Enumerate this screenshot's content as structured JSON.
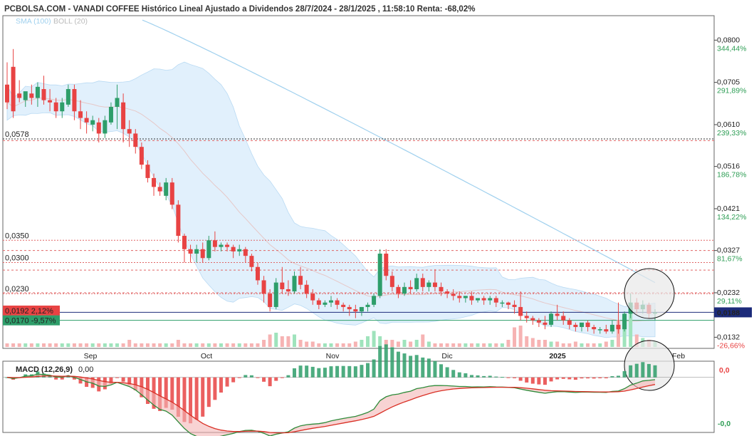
{
  "header": {
    "title": "PCBOLSA.COM - VANADI COFFEE Histórico Lineal Ajustado a Dividendos 28/7/2024 - 28/1/2025 , 11:58:10 Renta: -68,02%",
    "sma_label": "SMA (100)",
    "boll_label": "BOLL (20)"
  },
  "colors": {
    "up": "#2e9e6a",
    "down": "#e84343",
    "sma": "#9fd0ee",
    "boll_fill": "#dcedfb",
    "boll_mid": "#e6c8c8",
    "macd_line": "#2e8b3a",
    "signal_line": "#d93025",
    "vol_up": "#9fe3bc",
    "vol_down": "#f6b3b3"
  },
  "chart_data": {
    "type": "candlestick",
    "y_axis": {
      "ticks": [
        "0,0800",
        "0,0705",
        "0,0610",
        "0,0516",
        "0,0421",
        "0,0327",
        "0,0232",
        "0,0132"
      ],
      "tick_values": [
        0.08,
        0.0705,
        0.061,
        0.0516,
        0.0421,
        0.0327,
        0.0232,
        0.0132
      ],
      "pct_labels": [
        "344,44%",
        "291,89%",
        "239,33%",
        "186,78%",
        "134,22%",
        "81,67%",
        "29,11%",
        "-26,66%"
      ],
      "range": [
        0.0107,
        0.0855
      ]
    },
    "current_price_label": "0,0188",
    "left_levels": [
      {
        "value": 0.0578,
        "label": "0,0578"
      },
      {
        "value": 0.035,
        "label": "0,0350"
      },
      {
        "value": 0.03,
        "label": "0,0300"
      },
      {
        "value": 0.023,
        "label": "0,0230"
      }
    ],
    "right_levels": [
      0.0574,
      0.0327,
      0.0283,
      0.0232
    ],
    "badges": [
      {
        "price": "0,0192",
        "pct": "2,12%",
        "value": 0.0192
      },
      {
        "price": "0,0170",
        "pct": "-9,57%",
        "value": 0.017
      }
    ],
    "x_labels": [
      "Sep",
      "Oct",
      "Nov",
      "Dic",
      "2025",
      "Feb"
    ],
    "candles": [
      [
        0.07,
        0.075,
        0.066,
        0.0645
      ],
      [
        0.074,
        0.078,
        0.064,
        0.0625
      ],
      [
        0.068,
        0.071,
        0.067,
        0.066
      ],
      [
        0.0665,
        0.068,
        0.0685,
        0.065
      ],
      [
        0.068,
        0.07,
        0.067,
        0.0655
      ],
      [
        0.067,
        0.0705,
        0.0695,
        0.065
      ],
      [
        0.069,
        0.072,
        0.0665,
        0.0655
      ],
      [
        0.0665,
        0.069,
        0.066,
        0.064
      ],
      [
        0.066,
        0.067,
        0.064,
        0.0625
      ],
      [
        0.064,
        0.067,
        0.066,
        0.0625
      ],
      [
        0.0655,
        0.07,
        0.069,
        0.065
      ],
      [
        0.069,
        0.07,
        0.064,
        0.062
      ],
      [
        0.064,
        0.0665,
        0.0625,
        0.06
      ],
      [
        0.0625,
        0.064,
        0.0615,
        0.059
      ],
      [
        0.061,
        0.063,
        0.062,
        0.0595
      ],
      [
        0.0615,
        0.0625,
        0.059,
        0.057
      ],
      [
        0.059,
        0.063,
        0.062,
        0.058
      ],
      [
        0.0615,
        0.066,
        0.065,
        0.061
      ],
      [
        0.065,
        0.07,
        0.067,
        0.06
      ],
      [
        0.066,
        0.068,
        0.06,
        0.057
      ],
      [
        0.06,
        0.062,
        0.059,
        0.056
      ],
      [
        0.059,
        0.06,
        0.056,
        0.0545
      ],
      [
        0.056,
        0.057,
        0.052,
        0.051
      ],
      [
        0.052,
        0.053,
        0.049,
        0.048
      ],
      [
        0.049,
        0.05,
        0.047,
        0.045
      ],
      [
        0.047,
        0.048,
        0.046,
        0.045
      ],
      [
        0.045,
        0.049,
        0.048,
        0.044
      ],
      [
        0.048,
        0.049,
        0.043,
        0.042
      ],
      [
        0.043,
        0.044,
        0.036,
        0.0345
      ],
      [
        0.036,
        0.0365,
        0.033,
        0.03
      ],
      [
        0.033,
        0.034,
        0.032,
        0.03
      ],
      [
        0.032,
        0.034,
        0.033,
        0.03
      ],
      [
        0.033,
        0.0345,
        0.031,
        0.03
      ],
      [
        0.031,
        0.036,
        0.035,
        0.0305
      ],
      [
        0.035,
        0.037,
        0.0335,
        0.0325
      ],
      [
        0.0335,
        0.0345,
        0.034,
        0.0325
      ],
      [
        0.034,
        0.0345,
        0.0335,
        0.0325
      ],
      [
        0.0335,
        0.034,
        0.0325,
        0.031
      ],
      [
        0.0325,
        0.034,
        0.033,
        0.0315
      ],
      [
        0.033,
        0.0335,
        0.0315,
        0.03
      ],
      [
        0.0315,
        0.032,
        0.029,
        0.028
      ],
      [
        0.029,
        0.03,
        0.026,
        0.025
      ],
      [
        0.026,
        0.027,
        0.023,
        0.021
      ],
      [
        0.023,
        0.024,
        0.02,
        0.019
      ],
      [
        0.02,
        0.0265,
        0.0255,
        0.0195
      ],
      [
        0.0255,
        0.029,
        0.024,
        0.023
      ],
      [
        0.024,
        0.026,
        0.0235,
        0.0225
      ],
      [
        0.0235,
        0.028,
        0.027,
        0.023
      ],
      [
        0.027,
        0.029,
        0.025,
        0.024
      ],
      [
        0.025,
        0.026,
        0.023,
        0.022
      ],
      [
        0.023,
        0.024,
        0.0215,
        0.0205
      ],
      [
        0.0215,
        0.022,
        0.0205,
        0.0195
      ],
      [
        0.0205,
        0.0215,
        0.021,
        0.02
      ],
      [
        0.021,
        0.0225,
        0.0215,
        0.02
      ],
      [
        0.0215,
        0.022,
        0.0205,
        0.0195
      ],
      [
        0.0205,
        0.021,
        0.02,
        0.019
      ],
      [
        0.02,
        0.0205,
        0.0195,
        0.018
      ],
      [
        0.0195,
        0.0205,
        0.019,
        0.0175
      ],
      [
        0.019,
        0.02,
        0.02,
        0.018
      ],
      [
        0.02,
        0.021,
        0.0205,
        0.019
      ],
      [
        0.0205,
        0.023,
        0.0225,
        0.02
      ],
      [
        0.0225,
        0.033,
        0.032,
        0.022
      ],
      [
        0.032,
        0.033,
        0.027,
        0.026
      ],
      [
        0.027,
        0.028,
        0.0245,
        0.0235
      ],
      [
        0.0245,
        0.025,
        0.023,
        0.022
      ],
      [
        0.023,
        0.0255,
        0.0245,
        0.0225
      ],
      [
        0.0245,
        0.026,
        0.024,
        0.023
      ],
      [
        0.024,
        0.0275,
        0.0265,
        0.0235
      ],
      [
        0.0265,
        0.0275,
        0.0245,
        0.0235
      ],
      [
        0.0245,
        0.026,
        0.0255,
        0.0235
      ],
      [
        0.0255,
        0.0285,
        0.0245,
        0.0235
      ],
      [
        0.0245,
        0.0255,
        0.0235,
        0.0225
      ],
      [
        0.0235,
        0.024,
        0.023,
        0.022
      ],
      [
        0.023,
        0.024,
        0.0225,
        0.0215
      ],
      [
        0.0225,
        0.0235,
        0.022,
        0.021
      ],
      [
        0.022,
        0.0225,
        0.0225,
        0.021
      ],
      [
        0.0225,
        0.0235,
        0.0215,
        0.0205
      ],
      [
        0.0215,
        0.022,
        0.022,
        0.021
      ],
      [
        0.022,
        0.0225,
        0.0215,
        0.0205
      ],
      [
        0.0215,
        0.0225,
        0.022,
        0.0205
      ],
      [
        0.022,
        0.0225,
        0.021,
        0.02
      ],
      [
        0.021,
        0.0215,
        0.021,
        0.02
      ],
      [
        0.021,
        0.0212,
        0.0205,
        0.0195
      ],
      [
        0.0205,
        0.0215,
        0.02,
        0.0185
      ],
      [
        0.02,
        0.0235,
        0.018,
        0.017
      ],
      [
        0.018,
        0.019,
        0.0175,
        0.0165
      ],
      [
        0.0175,
        0.018,
        0.017,
        0.016
      ],
      [
        0.017,
        0.0175,
        0.0165,
        0.0155
      ],
      [
        0.0165,
        0.018,
        0.016,
        0.015
      ],
      [
        0.016,
        0.019,
        0.0185,
        0.0155
      ],
      [
        0.0185,
        0.0205,
        0.018,
        0.017
      ],
      [
        0.018,
        0.019,
        0.017,
        0.016
      ],
      [
        0.017,
        0.0175,
        0.016,
        0.015
      ],
      [
        0.016,
        0.0165,
        0.0155,
        0.0145
      ],
      [
        0.0155,
        0.016,
        0.0165,
        0.0145
      ],
      [
        0.0165,
        0.017,
        0.0155,
        0.0145
      ],
      [
        0.0155,
        0.016,
        0.015,
        0.014
      ],
      [
        0.015,
        0.0155,
        0.015,
        0.014
      ],
      [
        0.015,
        0.016,
        0.0145,
        0.014
      ],
      [
        0.0145,
        0.017,
        0.016,
        0.014
      ],
      [
        0.016,
        0.021,
        0.015,
        0.014
      ],
      [
        0.015,
        0.019,
        0.0185,
        0.0145
      ],
      [
        0.0185,
        0.023,
        0.021,
        0.0175
      ],
      [
        0.021,
        0.022,
        0.0195,
        0.0185
      ],
      [
        0.0195,
        0.0215,
        0.0205,
        0.0185
      ],
      [
        0.0205,
        0.021,
        0.0185,
        0.0175
      ],
      [
        0.0185,
        0.0195,
        0.0188,
        0.017
      ]
    ],
    "volumes": [
      0.1,
      0.1,
      0.1,
      0.1,
      0.1,
      0.1,
      0.1,
      0.1,
      0.1,
      0.1,
      0.1,
      0.1,
      0.1,
      0.1,
      0.1,
      0.1,
      0.1,
      0.1,
      0.1,
      0.1,
      0.2,
      0.1,
      0.1,
      0.1,
      0.1,
      0.1,
      0.1,
      0.1,
      0.2,
      0.1,
      0.1,
      0.1,
      0.1,
      0.1,
      0.1,
      0.1,
      0.1,
      0.1,
      0.1,
      0.1,
      0.1,
      0.1,
      0.2,
      0.35,
      0.4,
      0.3,
      0.3,
      0.35,
      0.2,
      0.15,
      0.15,
      0.1,
      0.1,
      0.1,
      0.1,
      0.1,
      0.1,
      0.15,
      0.2,
      0.3,
      0.45,
      0.3,
      0.2,
      0.2,
      0.15,
      0.2,
      0.15,
      0.2,
      0.35,
      0.15,
      0.1,
      0.1,
      0.1,
      0.1,
      0.1,
      0.1,
      0.1,
      0.1,
      0.1,
      0.1,
      0.1,
      0.1,
      0.2,
      0.55,
      0.6,
      0.3,
      0.25,
      0.2,
      0.2,
      0.15,
      0.15,
      0.1,
      0.1,
      0.15,
      0.1,
      0.1,
      0.1,
      0.1,
      0.15,
      0.2,
      0.75,
      0.9,
      0.95,
      0.35,
      0.25,
      0.2,
      0.15
    ],
    "macd": {
      "label": "MACD (12,26,9)",
      "value_label": "0,00",
      "right_ticks": [
        "0,0",
        "-0,0"
      ],
      "range": [
        -0.0075,
        0.0022
      ]
    }
  }
}
